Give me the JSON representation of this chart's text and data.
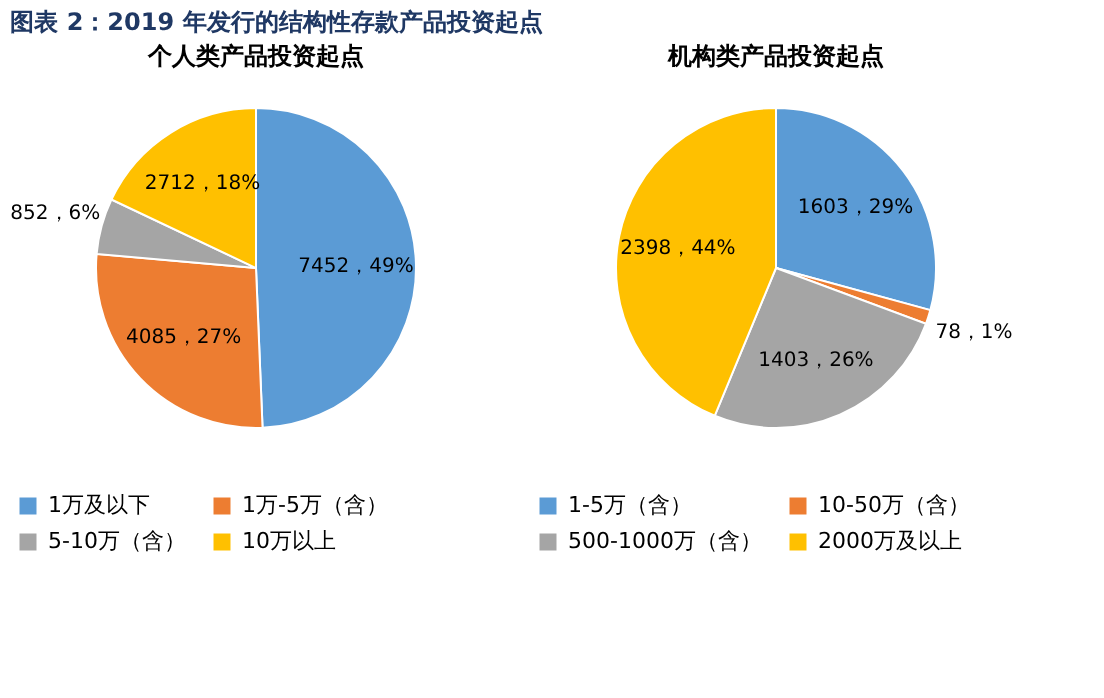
{
  "chart_data": [
    {
      "type": "pie",
      "title": "个人类产品投资起点",
      "categories": [
        "1万及以下",
        "1万-5万（含）",
        "5-10万（含）",
        "10万以上"
      ],
      "values": [
        7452,
        4085,
        852,
        2712
      ],
      "colors": [
        "#5b9bd5",
        "#ed7d31",
        "#a5a5a5",
        "#ffc000"
      ],
      "value_labels": [
        "7452，49%",
        "4085，27%",
        "852，6%",
        "2712，18%"
      ],
      "legend": "bottom",
      "annotations": [
        "图表 2：2019 年发行的结构性存款产品投资起点"
      ]
    },
    {
      "type": "pie",
      "title": "机构类产品投资起点",
      "categories": [
        "1-5万（含）",
        "10-50万（含）",
        "500-1000万（含）",
        "2000万及以上"
      ],
      "values": [
        1603,
        78,
        1403,
        2398
      ],
      "colors": [
        "#5b9bd5",
        "#ed7d31",
        "#a5a5a5",
        "#ffc000"
      ],
      "value_labels": [
        "1603，29%",
        "78，1%",
        "1403，26%",
        "2398，44%"
      ],
      "legend": "bottom"
    }
  ]
}
